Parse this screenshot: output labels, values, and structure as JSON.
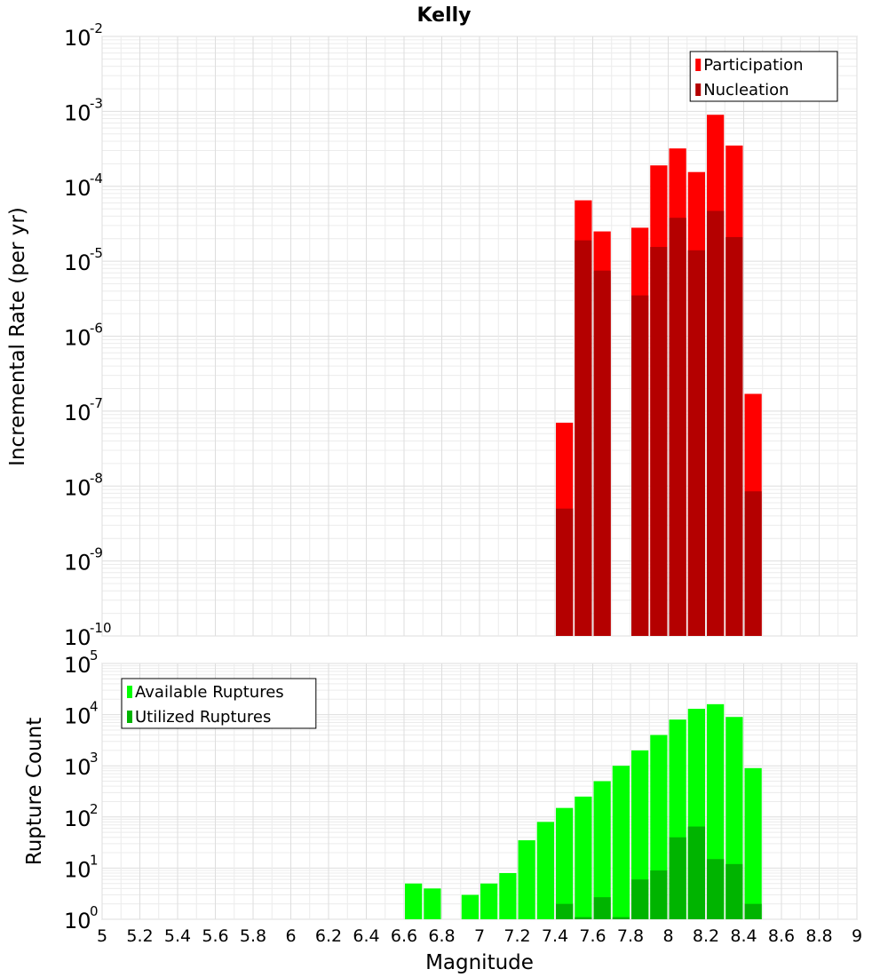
{
  "chart_data": [
    {
      "type": "bar",
      "title": "Kelly",
      "ylabel": "Incremental Rate (per yr)",
      "xlabel": "",
      "y_scale": "log",
      "ylim_exp": [
        -10,
        -2
      ],
      "xlim": [
        5,
        9
      ],
      "bin_width": 0.1,
      "legend": {
        "position": "top-right",
        "entries": [
          "Participation",
          "Nucleation"
        ]
      },
      "colors": {
        "Participation": "#ff0000",
        "Nucleation": "#b40000"
      },
      "series": [
        {
          "name": "Participation",
          "x": [
            7.45,
            7.55,
            7.65,
            7.85,
            7.95,
            8.05,
            8.15,
            8.25,
            8.35,
            8.45
          ],
          "values": [
            7e-08,
            6.5e-05,
            2.5e-05,
            2.8e-05,
            0.00019,
            0.00032,
            0.000155,
            0.0009,
            0.00035,
            1.7e-07
          ]
        },
        {
          "name": "Nucleation",
          "x": [
            7.45,
            7.55,
            7.65,
            7.85,
            7.95,
            8.05,
            8.15,
            8.25,
            8.35,
            8.45
          ],
          "values": [
            5e-09,
            1.9e-05,
            7.5e-06,
            3.5e-06,
            1.55e-05,
            3.8e-05,
            1.4e-05,
            4.7e-05,
            2.1e-05,
            8.5e-09
          ]
        }
      ]
    },
    {
      "type": "bar",
      "ylabel": "Rupture Count",
      "xlabel": "Magnitude",
      "y_scale": "log",
      "ylim_exp": [
        0,
        5
      ],
      "xlim": [
        5,
        9
      ],
      "x_ticks": [
        "5",
        "5.2",
        "5.4",
        "5.6",
        "5.8",
        "6",
        "6.2",
        "6.4",
        "6.6",
        "6.8",
        "7",
        "7.2",
        "7.4",
        "7.6",
        "7.8",
        "8",
        "8.2",
        "8.4",
        "8.6",
        "8.8",
        "9"
      ],
      "bin_width": 0.1,
      "legend": {
        "position": "top-left",
        "entries": [
          "Available Ruptures",
          "Utilized Ruptures"
        ]
      },
      "colors": {
        "Available Ruptures": "#00ff00",
        "Utilized Ruptures": "#00b400"
      },
      "series": [
        {
          "name": "Available Ruptures",
          "x": [
            6.65,
            6.75,
            6.95,
            7.05,
            7.15,
            7.25,
            7.35,
            7.45,
            7.55,
            7.65,
            7.75,
            7.85,
            7.95,
            8.05,
            8.15,
            8.25,
            8.35,
            8.45
          ],
          "values": [
            5,
            4,
            3,
            5,
            8,
            35,
            80,
            150,
            250,
            500,
            1000,
            2000,
            4000,
            8000,
            13000,
            16000,
            9000,
            900
          ]
        },
        {
          "name": "Utilized Ruptures",
          "x": [
            7.45,
            7.55,
            7.65,
            7.75,
            7.85,
            7.95,
            8.05,
            8.15,
            8.25,
            8.35,
            8.45
          ],
          "values": [
            2,
            1.1,
            2.7,
            1.1,
            6,
            9,
            40,
            65,
            15,
            12,
            2
          ]
        }
      ]
    }
  ]
}
